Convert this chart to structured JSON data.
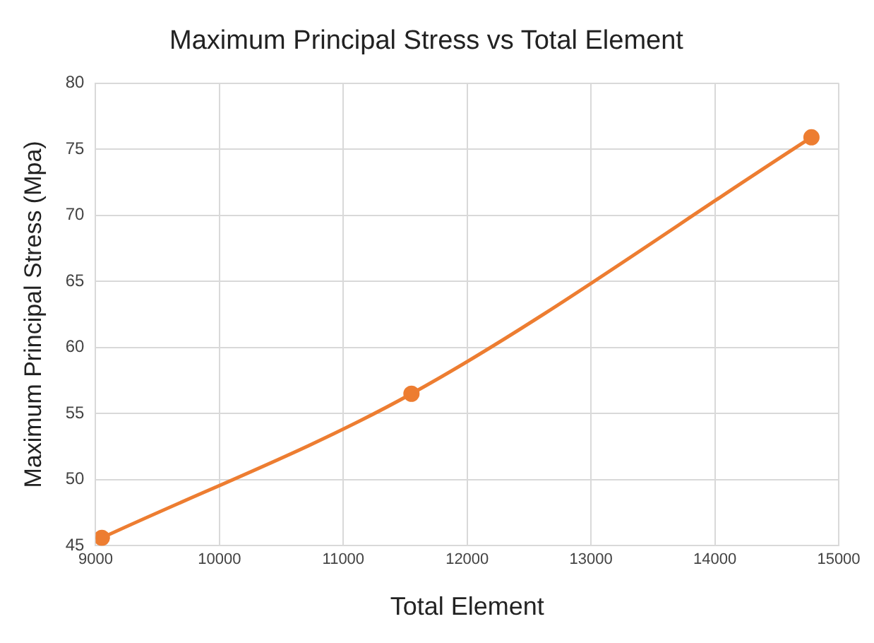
{
  "chart_data": {
    "type": "line",
    "title": "Maximum Principal Stress vs Total Element",
    "xlabel": "Total Element",
    "ylabel": "Maximum Principal Stress (Mpa)",
    "series": [
      {
        "color": "#ed7d31",
        "x": [
          9050,
          11550,
          14780
        ],
        "values": [
          45.6,
          56.5,
          75.9
        ]
      }
    ],
    "xlim": [
      9000,
      15000
    ],
    "xticks": [
      9000,
      10000,
      11000,
      12000,
      13000,
      14000,
      15000
    ],
    "ylim": [
      45,
      80
    ],
    "yticks": [
      45,
      50,
      55,
      60,
      65,
      70,
      75,
      80
    ],
    "grid": true,
    "legend": false,
    "marker": "circle",
    "line_style": "solid"
  }
}
